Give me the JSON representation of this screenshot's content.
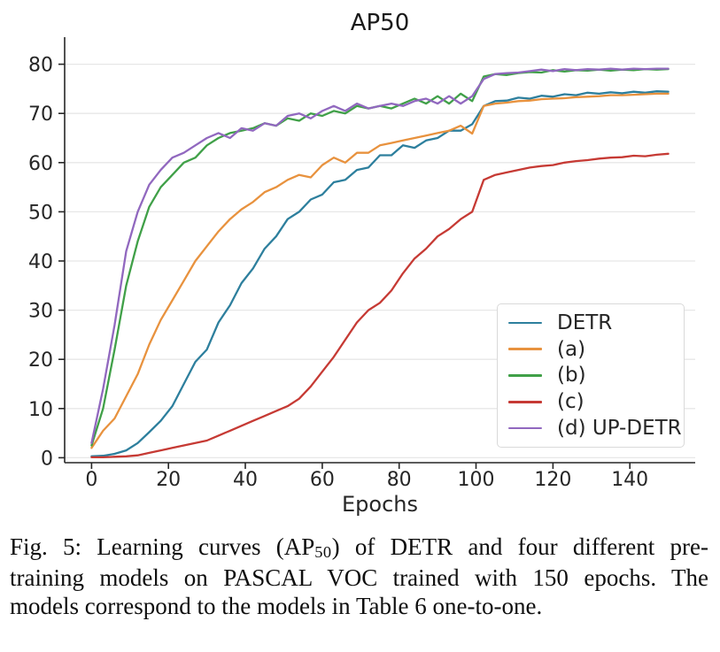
{
  "figure": {
    "caption": {
      "line1_part1": "Fig. 5: Learning curves (AP",
      "line1_sub": "50",
      "line1_part2": ") of DETR and four different pre-",
      "line2": "training models on PASCAL VOC trained with 150 epochs. The",
      "line3": "models correspond to the models in Table 6 one-to-one."
    }
  },
  "chart_data": {
    "type": "line",
    "title": "AP50",
    "xlabel": "Epochs",
    "ylabel": "",
    "xlim": [
      -7,
      157
    ],
    "ylim": [
      -1,
      85.5
    ],
    "xticks": [
      0,
      20,
      40,
      60,
      80,
      100,
      120,
      140
    ],
    "yticks": [
      0,
      10,
      20,
      30,
      40,
      50,
      60,
      70,
      80
    ],
    "grid": "horizontal-only",
    "grid_color": "#e7e7e7",
    "axis_color": "#262626",
    "legend_position": "lower-right-inside",
    "x": [
      0,
      3,
      6,
      9,
      12,
      15,
      18,
      21,
      24,
      27,
      30,
      33,
      36,
      39,
      42,
      45,
      48,
      51,
      54,
      57,
      60,
      63,
      66,
      69,
      72,
      75,
      78,
      81,
      84,
      87,
      90,
      93,
      96,
      99,
      102,
      105,
      108,
      111,
      114,
      117,
      120,
      123,
      126,
      129,
      132,
      135,
      138,
      141,
      144,
      147,
      150
    ],
    "series": [
      {
        "name": "DETR",
        "color": "#2d7f9d",
        "values": [
          0.3,
          0.4,
          0.8,
          1.5,
          3,
          5.2,
          7.5,
          10.5,
          15,
          19.5,
          22,
          27.5,
          31,
          35.5,
          38.5,
          42.5,
          45,
          48.5,
          50,
          52.5,
          53.5,
          56,
          56.5,
          58.5,
          59,
          61.5,
          61.5,
          63.5,
          63,
          64.5,
          65,
          66.5,
          66.5,
          67.8,
          71.5,
          72.5,
          72.6,
          73.2,
          73,
          73.6,
          73.4,
          73.9,
          73.7,
          74.2,
          74,
          74.3,
          74.1,
          74.4,
          74.2,
          74.5,
          74.4
        ]
      },
      {
        "name": "(a)",
        "color": "#e8923e",
        "values": [
          2,
          5.5,
          8,
          12.5,
          17,
          23,
          28,
          32,
          36,
          40,
          43,
          46,
          48.5,
          50.5,
          52,
          54,
          55,
          56.5,
          57.5,
          57,
          59.5,
          61,
          60,
          62,
          62,
          63.5,
          64,
          64.5,
          65,
          65.5,
          66,
          66.5,
          67.5,
          65.9,
          71.5,
          72,
          72.2,
          72.5,
          72.6,
          72.9,
          73,
          73.1,
          73.3,
          73.4,
          73.5,
          73.7,
          73.7,
          73.8,
          73.9,
          74,
          74
        ]
      },
      {
        "name": "(b)",
        "color": "#40a048",
        "values": [
          2.5,
          10,
          22,
          35,
          44,
          51,
          55,
          57.5,
          60,
          61,
          63.5,
          65,
          66,
          66.5,
          67,
          68,
          67.5,
          69,
          68.5,
          70,
          69.5,
          70.5,
          70,
          71.5,
          71,
          71.5,
          71,
          72,
          73,
          72,
          73.5,
          72,
          74,
          72.5,
          77.5,
          78,
          77.8,
          78.2,
          78.4,
          78.3,
          78.8,
          78.5,
          78.8,
          78.7,
          78.9,
          78.7,
          78.9,
          78.8,
          79,
          78.9,
          79
        ]
      },
      {
        "name": "(c)",
        "color": "#c63a34",
        "values": [
          0.1,
          0.1,
          0.2,
          0.3,
          0.5,
          1,
          1.5,
          2,
          2.5,
          3,
          3.5,
          4.5,
          5.5,
          6.5,
          7.5,
          8.5,
          9.5,
          10.5,
          12,
          14.5,
          17.5,
          20.5,
          24,
          27.5,
          30,
          31.5,
          34,
          37.5,
          40.5,
          42.5,
          45,
          46.5,
          48.5,
          50,
          56.5,
          57.5,
          58,
          58.5,
          59,
          59.3,
          59.5,
          60,
          60.3,
          60.5,
          60.8,
          61,
          61.1,
          61.4,
          61.3,
          61.6,
          61.8
        ]
      },
      {
        "name": "(d) UP-DETR",
        "color": "#9168bf",
        "values": [
          3,
          14,
          27,
          42,
          50,
          55.5,
          58.5,
          61,
          62,
          63.5,
          65,
          66,
          65,
          67,
          66.5,
          68,
          67.5,
          69.5,
          70,
          69,
          70.5,
          71.5,
          70.5,
          72,
          71,
          71.5,
          72,
          71.5,
          72.5,
          73,
          72,
          73.5,
          72,
          73.5,
          77,
          78,
          78.2,
          78.3,
          78.6,
          78.9,
          78.6,
          79,
          78.8,
          79,
          78.9,
          79.1,
          78.9,
          79.1,
          79,
          79.1,
          79.1
        ]
      }
    ]
  }
}
